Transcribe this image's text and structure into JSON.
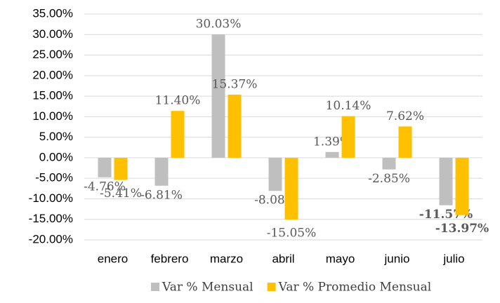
{
  "chart_data": {
    "type": "bar",
    "categories": [
      "enero",
      "febrero",
      "marzo",
      "abril",
      "mayo",
      "junio",
      "julio"
    ],
    "series": [
      {
        "name": "Var % Mensual",
        "color": "#BFBFBF",
        "values": [
          -4.76,
          -6.81,
          30.03,
          -8.08,
          1.39,
          -2.85,
          -11.57
        ],
        "value_labels": [
          "-4.76%",
          "-6.81%",
          "30.03%",
          "-8.08%",
          "1.39%",
          "-2.85%",
          "-11.57%"
        ]
      },
      {
        "name": "Var % Promedio Mensual",
        "color": "#FFC000",
        "values": [
          -5.41,
          11.4,
          15.37,
          -15.05,
          10.14,
          7.62,
          -13.97
        ],
        "value_labels": [
          "-5.41%",
          "11.40%",
          "15.37%",
          "-15.05%",
          "10.14%",
          "7.62%",
          "-13.97%"
        ]
      }
    ],
    "ylim": [
      -20,
      35
    ],
    "yticks": [
      {
        "value": -20,
        "label": "-20.00%"
      },
      {
        "value": -15,
        "label": "-15.00%"
      },
      {
        "value": -10,
        "label": "-10.00%"
      },
      {
        "value": -5,
        "label": "-5.00%"
      },
      {
        "value": 0,
        "label": "0.00%"
      },
      {
        "value": 5,
        "label": "5.00%"
      },
      {
        "value": 10,
        "label": "10.00%"
      },
      {
        "value": 15,
        "label": "15.00%"
      },
      {
        "value": 20,
        "label": "20.00%"
      },
      {
        "value": 25,
        "label": "25.00%"
      },
      {
        "value": 30,
        "label": "30.00%"
      },
      {
        "value": 35,
        "label": "35.00%"
      }
    ],
    "grid": true,
    "legend": "bottom"
  }
}
